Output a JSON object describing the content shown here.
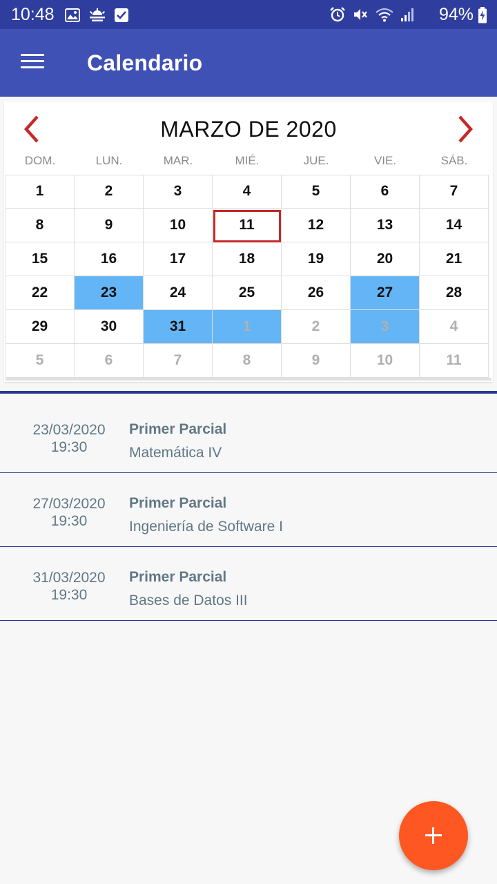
{
  "status_bar": {
    "time": "10:48",
    "battery": "94%",
    "icons": [
      "image-icon",
      "weather-icon",
      "checkbox-icon",
      "alarm-icon",
      "mute-icon",
      "wifi-icon",
      "signal-icon",
      "battery-charging-icon"
    ]
  },
  "app_bar": {
    "title": "Calendario",
    "menu_icon": "hamburger-menu-icon"
  },
  "calendar": {
    "month_title": "MARZO DE 2020",
    "prev_icon": "chevron-left-icon",
    "next_icon": "chevron-right-icon",
    "weekdays": [
      "DOM.",
      "LUN.",
      "MAR.",
      "MIÉ.",
      "JUE.",
      "VIE.",
      "SÁB."
    ],
    "today": "11",
    "colors": {
      "event": "#64b5f6",
      "today_border": "#c62828",
      "nav": "#c62828"
    },
    "weeks": [
      [
        {
          "d": "1"
        },
        {
          "d": "2"
        },
        {
          "d": "3"
        },
        {
          "d": "4"
        },
        {
          "d": "5"
        },
        {
          "d": "6"
        },
        {
          "d": "7"
        }
      ],
      [
        {
          "d": "8"
        },
        {
          "d": "9"
        },
        {
          "d": "10"
        },
        {
          "d": "11",
          "today": true
        },
        {
          "d": "12"
        },
        {
          "d": "13"
        },
        {
          "d": "14"
        }
      ],
      [
        {
          "d": "15"
        },
        {
          "d": "16"
        },
        {
          "d": "17"
        },
        {
          "d": "18"
        },
        {
          "d": "19"
        },
        {
          "d": "20"
        },
        {
          "d": "21"
        }
      ],
      [
        {
          "d": "22"
        },
        {
          "d": "23",
          "event": true
        },
        {
          "d": "24"
        },
        {
          "d": "25"
        },
        {
          "d": "26"
        },
        {
          "d": "27",
          "event": true
        },
        {
          "d": "28"
        }
      ],
      [
        {
          "d": "29"
        },
        {
          "d": "30"
        },
        {
          "d": "31",
          "event": true
        },
        {
          "d": "1",
          "other": true,
          "event": true
        },
        {
          "d": "2",
          "other": true
        },
        {
          "d": "3",
          "other": true,
          "event": true
        },
        {
          "d": "4",
          "other": true
        }
      ],
      [
        {
          "d": "5",
          "other": true
        },
        {
          "d": "6",
          "other": true
        },
        {
          "d": "7",
          "other": true
        },
        {
          "d": "8",
          "other": true
        },
        {
          "d": "9",
          "other": true
        },
        {
          "d": "10",
          "other": true
        },
        {
          "d": "11",
          "other": true
        }
      ]
    ]
  },
  "events": [
    {
      "date": "23/03/2020",
      "time": "19:30",
      "title": "Primer Parcial",
      "subject": "Matemática IV"
    },
    {
      "date": "27/03/2020",
      "time": "19:30",
      "title": "Primer Parcial",
      "subject": "Ingeniería de Software I"
    },
    {
      "date": "31/03/2020",
      "time": "19:30",
      "title": "Primer Parcial",
      "subject": "Bases de Datos III"
    }
  ],
  "fab": {
    "icon": "plus-icon",
    "color": "#ff5722"
  }
}
